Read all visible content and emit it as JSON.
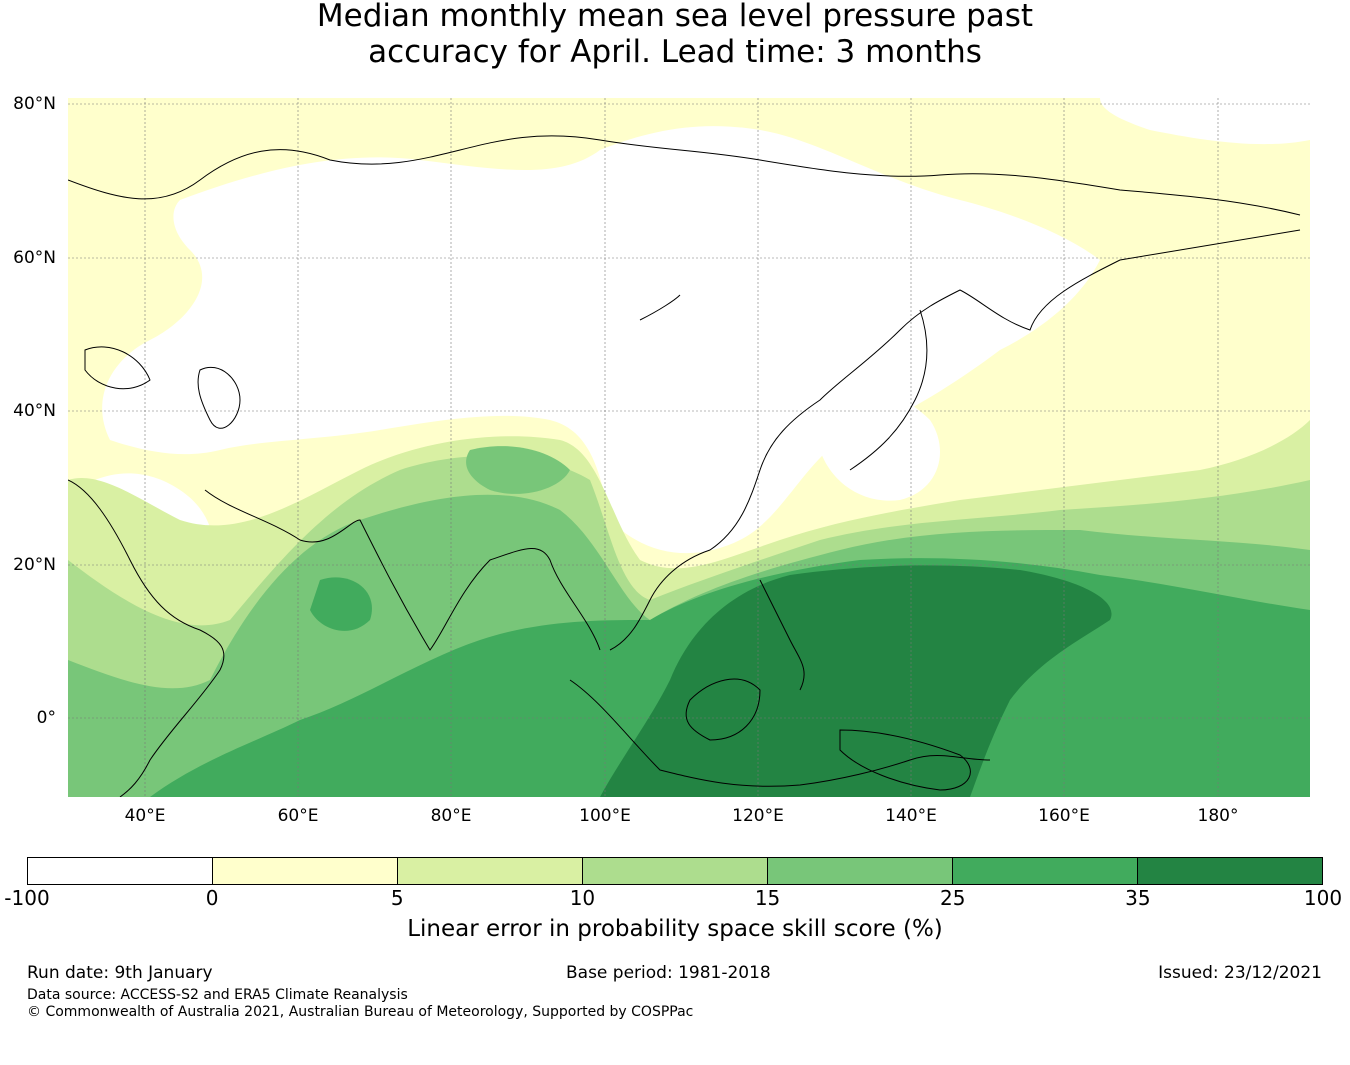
{
  "title_line1": "Median monthly mean sea level pressure past",
  "title_line2": "accuracy for April. Lead time: 3 months",
  "lat_labels": [
    "80°N",
    "60°N",
    "40°N",
    "20°N",
    "0°"
  ],
  "lon_labels": [
    "40°E",
    "60°E",
    "80°E",
    "100°E",
    "120°E",
    "140°E",
    "160°E",
    "180°"
  ],
  "colorbar": {
    "ticks": [
      "-100",
      "0",
      "5",
      "10",
      "15",
      "25",
      "35",
      "100"
    ],
    "colors": [
      "#ffffff",
      "#ffffcc",
      "#d9f0a3",
      "#addd8e",
      "#78c679",
      "#41ab5d",
      "#238443"
    ],
    "label": "Linear error in probability space skill score (%)"
  },
  "footer": {
    "run_date": "Run date: 9th January",
    "base_period": "Base period: 1981-2018",
    "issued": "Issued: 23/12/2021",
    "data_source": "Data source: ACCESS-S2 and ERA5 Climate Reanalysis",
    "copyright": "© Commonwealth of Australia 2021, Australian Bureau of Meteorology, Supported by COSPPac"
  }
}
